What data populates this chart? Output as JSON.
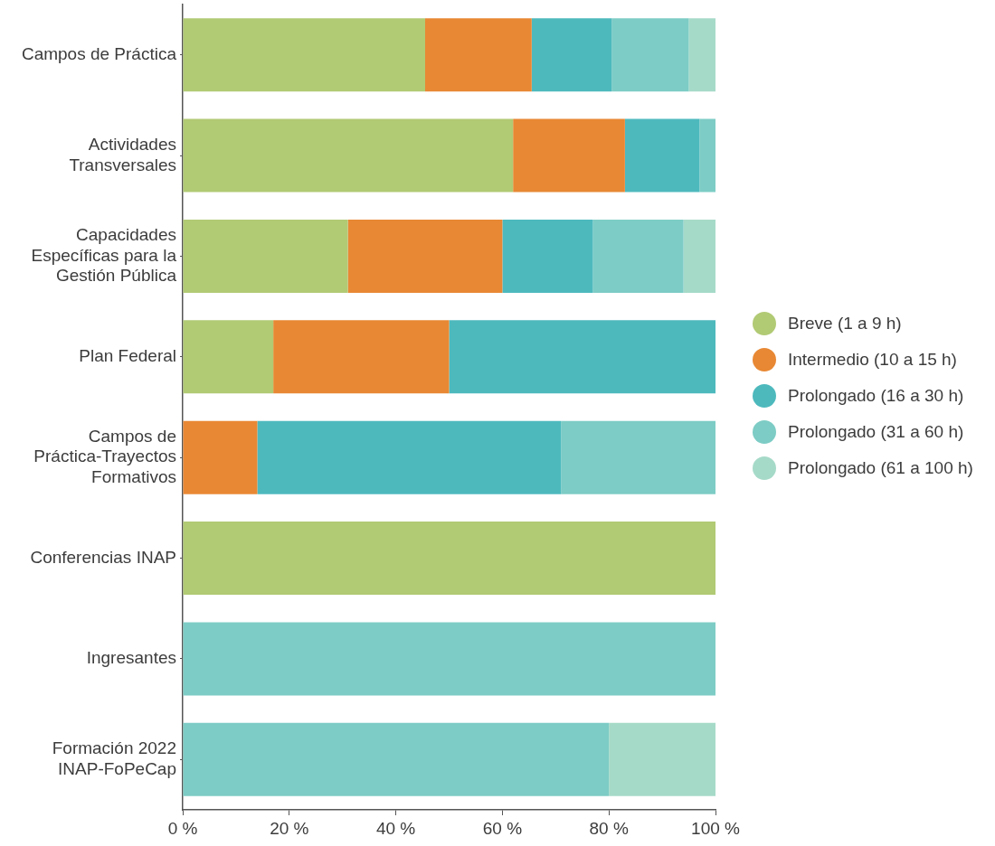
{
  "chart_data": {
    "type": "bar",
    "orientation": "horizontal",
    "stacked": true,
    "categories": [
      "Campos de Práctica",
      "Actividades\nTransversales",
      "Capacidades\nEspecíficas para la\nGestión Pública",
      "Plan Federal",
      "Campos de\nPráctica-Trayectos\nFormativos",
      "Conferencias INAP",
      "Ingresantes",
      "Formación 2022\nINAP-FoPeCap"
    ],
    "series": [
      {
        "name": "Breve (1 a 9 h)",
        "color": "#b1ca74",
        "values": [
          45.5,
          62,
          31,
          17,
          null,
          100,
          null,
          null
        ]
      },
      {
        "name": "Intermedio (10 a 15 h)",
        "color": "#e88834",
        "values": [
          20,
          21,
          29,
          33,
          14,
          null,
          null,
          null
        ]
      },
      {
        "name": "Prolongado (16 a 30 h)",
        "color": "#4db9bd",
        "values": [
          15,
          14,
          17,
          50,
          57,
          null,
          null,
          null
        ]
      },
      {
        "name": "Prolongado (31 a 60 h)",
        "color": "#7dccc5",
        "values": [
          14.5,
          3,
          17,
          null,
          29,
          null,
          100,
          80
        ]
      },
      {
        "name": "Prolongado (61 a 100 h)",
        "color": "#a6dac8",
        "values": [
          5,
          null,
          6,
          null,
          null,
          null,
          null,
          20
        ]
      }
    ],
    "xlim": [
      0,
      100
    ],
    "xticks": [
      {
        "value": 0,
        "label": "0 %"
      },
      {
        "value": 20,
        "label": "20 %"
      },
      {
        "value": 40,
        "label": "40 %"
      },
      {
        "value": 60,
        "label": "60 %"
      },
      {
        "value": 80,
        "label": "80 %"
      },
      {
        "value": 100,
        "label": "100 %"
      }
    ],
    "grid": false,
    "legend": "right"
  }
}
